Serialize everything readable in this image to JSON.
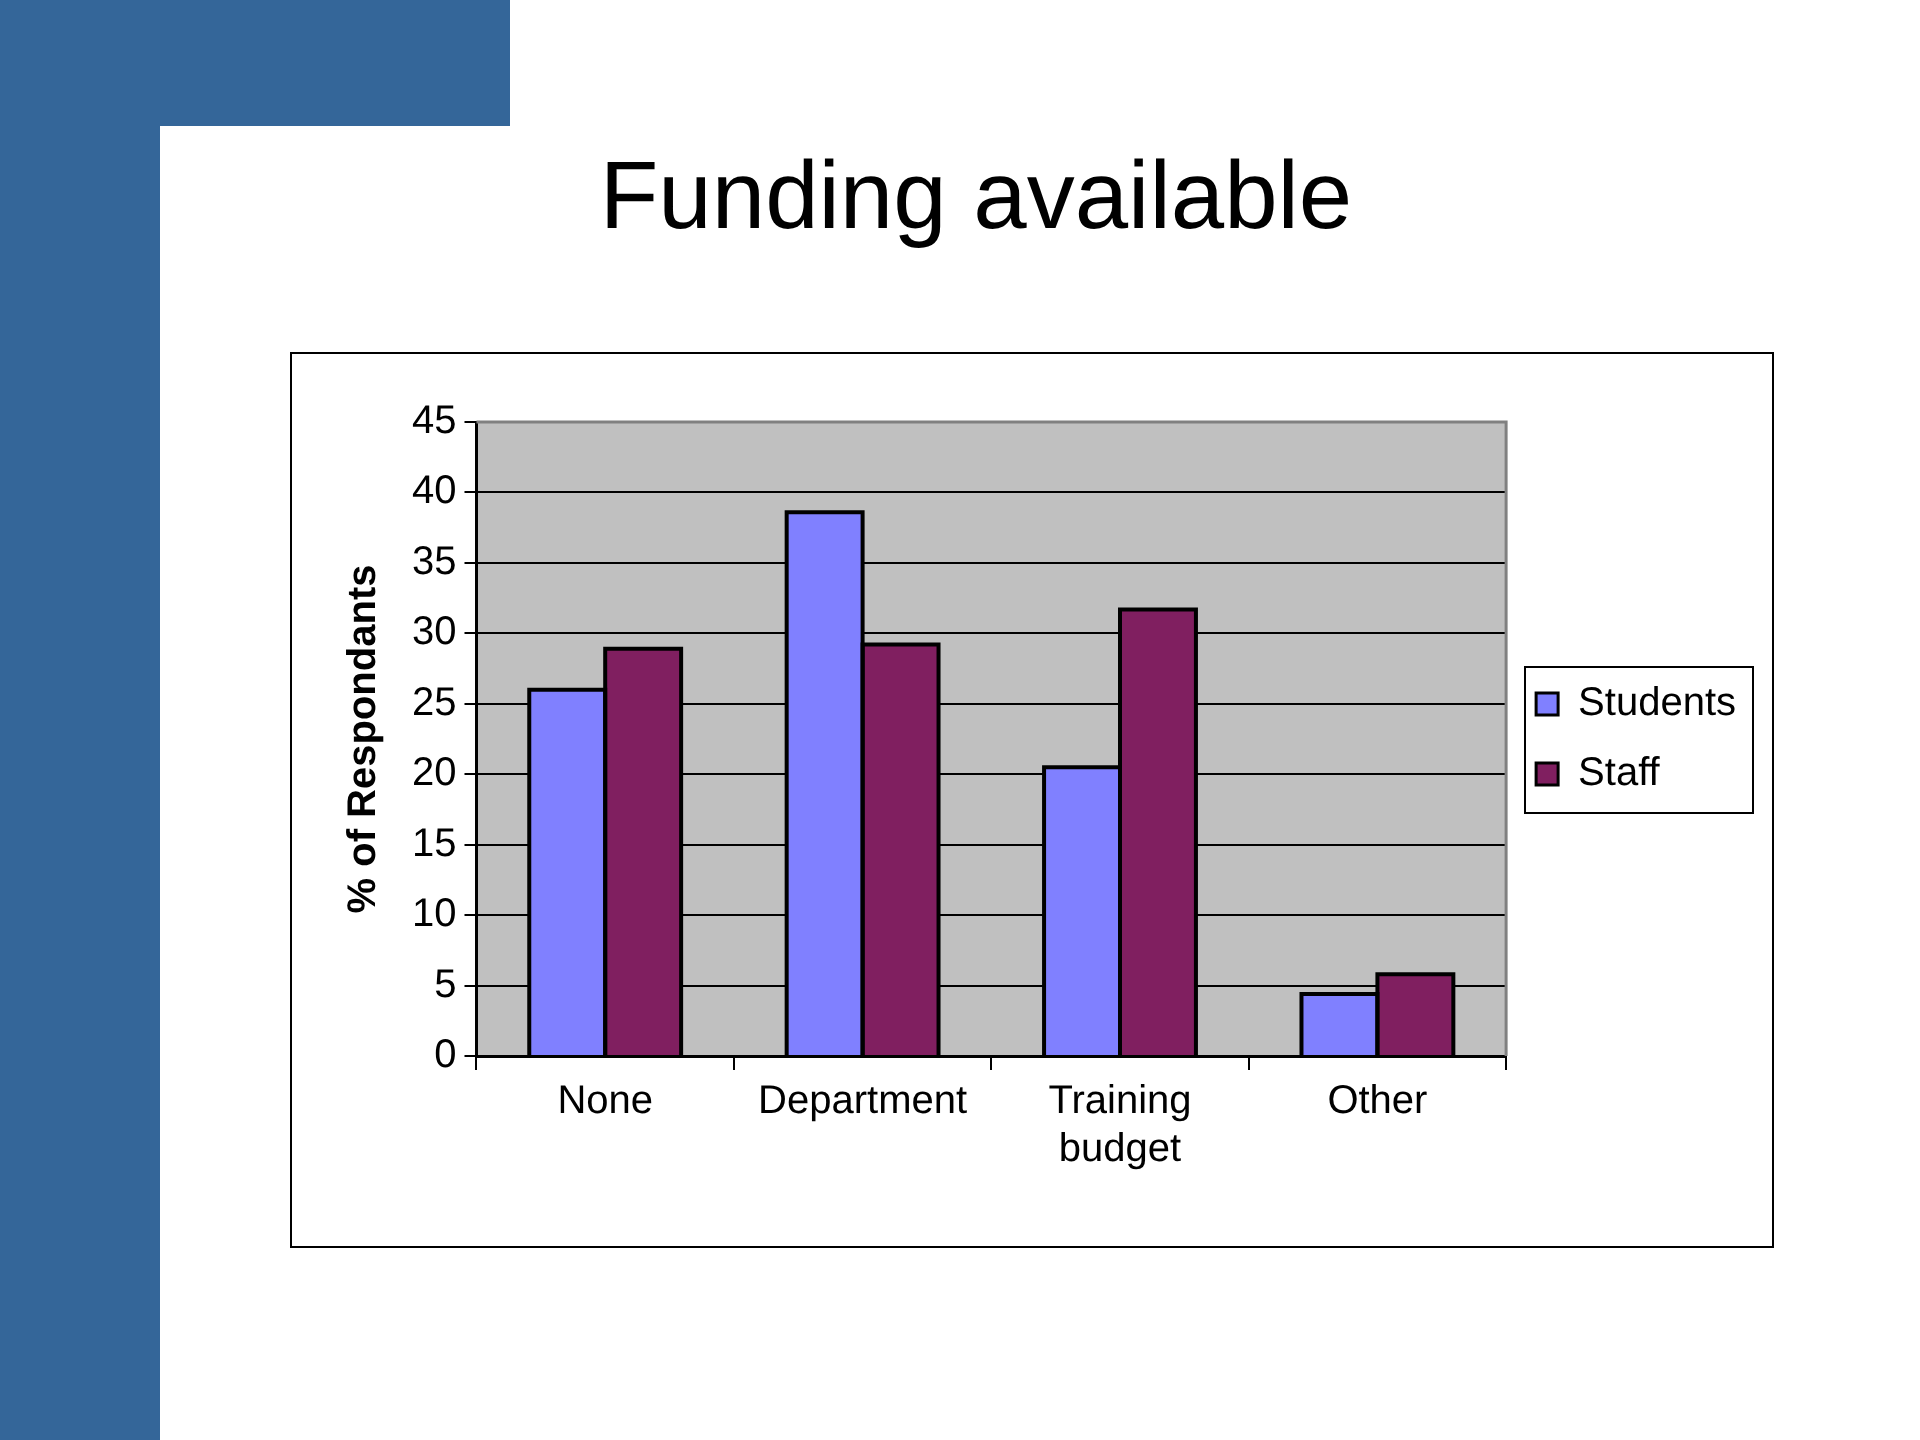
{
  "chart_data": {
    "type": "bar",
    "title": "Funding available",
    "ylabel": "% of Respondants",
    "categories": [
      "None",
      "Department",
      "Training budget",
      "Other"
    ],
    "series": [
      {
        "name": "Students",
        "color": "#8080ff",
        "values": [
          26.0,
          38.6,
          20.5,
          4.4
        ]
      },
      {
        "name": "Staff",
        "color": "#801f60",
        "values": [
          28.9,
          29.2,
          31.7,
          5.8
        ]
      }
    ],
    "ylim": [
      0,
      45
    ],
    "yticks": [
      0,
      5,
      10,
      15,
      20,
      25,
      30,
      35,
      40,
      45
    ],
    "grid": "y",
    "legend": "right"
  }
}
